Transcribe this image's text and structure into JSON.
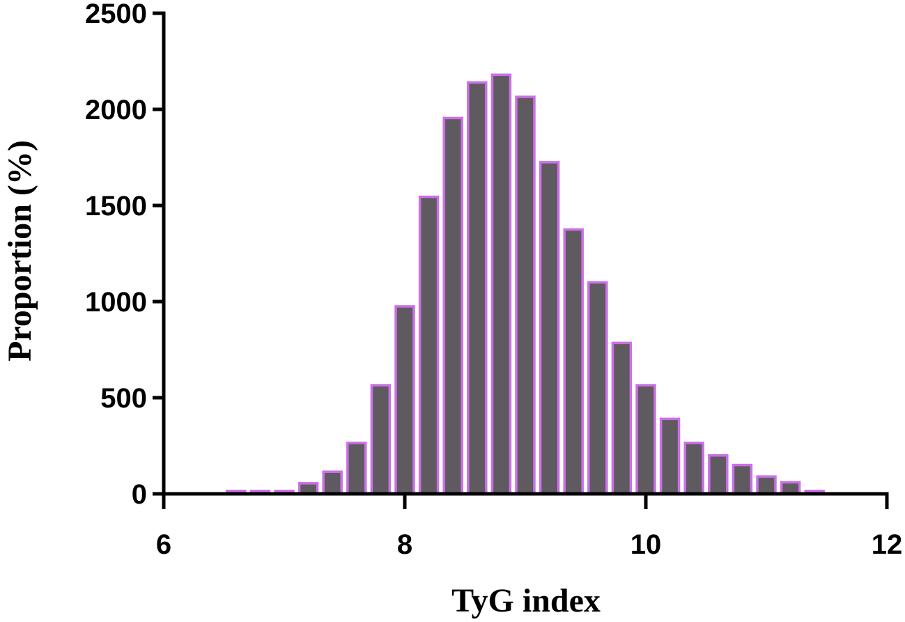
{
  "chart_data": {
    "type": "bar",
    "title": "",
    "xlabel": "TyG index",
    "ylabel": "Proportion (%)",
    "xlim": [
      6,
      12
    ],
    "ylim": [
      0,
      2500
    ],
    "xticks": [
      6,
      8,
      10,
      12
    ],
    "yticks": [
      0,
      500,
      1000,
      1500,
      2000,
      2500
    ],
    "grid": false,
    "legend": "none",
    "bin_width": 0.2,
    "x": [
      6.6,
      6.8,
      7.0,
      7.2,
      7.4,
      7.6,
      7.8,
      8.0,
      8.2,
      8.4,
      8.6,
      8.8,
      9.0,
      9.2,
      9.4,
      9.6,
      9.8,
      10.0,
      10.2,
      10.4,
      10.6,
      10.8,
      11.0,
      11.2,
      11.4
    ],
    "values": [
      15,
      15,
      15,
      55,
      115,
      265,
      565,
      975,
      1545,
      1955,
      2140,
      2180,
      2065,
      1725,
      1375,
      1100,
      785,
      565,
      390,
      265,
      200,
      150,
      90,
      60,
      15
    ],
    "colors": {
      "fill": "#5f5a5f",
      "edge": "#cc6fe8",
      "axis": "#000000"
    }
  }
}
